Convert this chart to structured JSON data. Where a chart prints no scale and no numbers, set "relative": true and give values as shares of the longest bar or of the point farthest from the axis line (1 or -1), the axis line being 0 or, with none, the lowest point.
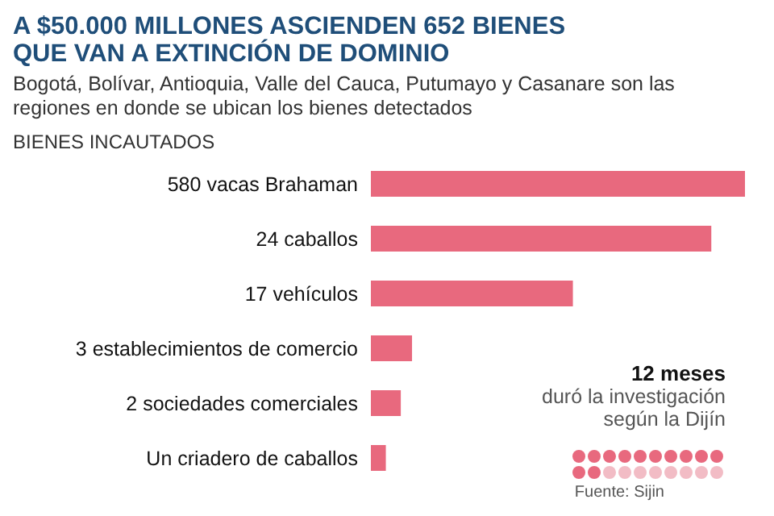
{
  "chart_data": {
    "type": "bar",
    "orientation": "horizontal",
    "title": "A $50.000 MILLONES ASCIENDEN 652 BIENES QUE VAN A EXTINCIÓN DE DOMINIO",
    "subtitle": "Bogotá, Bolívar, Antioquia, Valle del Cauca, Putumayo y Casanare son las regiones en donde se ubican los bienes detectados",
    "ylabel": "BIENES INCAUTADOS",
    "categories": [
      "580 vacas Brahaman",
      "24 caballos",
      "17 vehículos",
      "3 establecimientos de comercio",
      "2 sociedades comerciales",
      "Un criadero de caballos"
    ],
    "values": [
      1,
      0.91,
      0.54,
      0.11,
      0.08,
      0.04
    ],
    "relative": true,
    "color": "#e8697e",
    "annotations": [
      "12 meses",
      "duró la investigación según la Dijín",
      "Fuente: Sijin"
    ]
  }
}
